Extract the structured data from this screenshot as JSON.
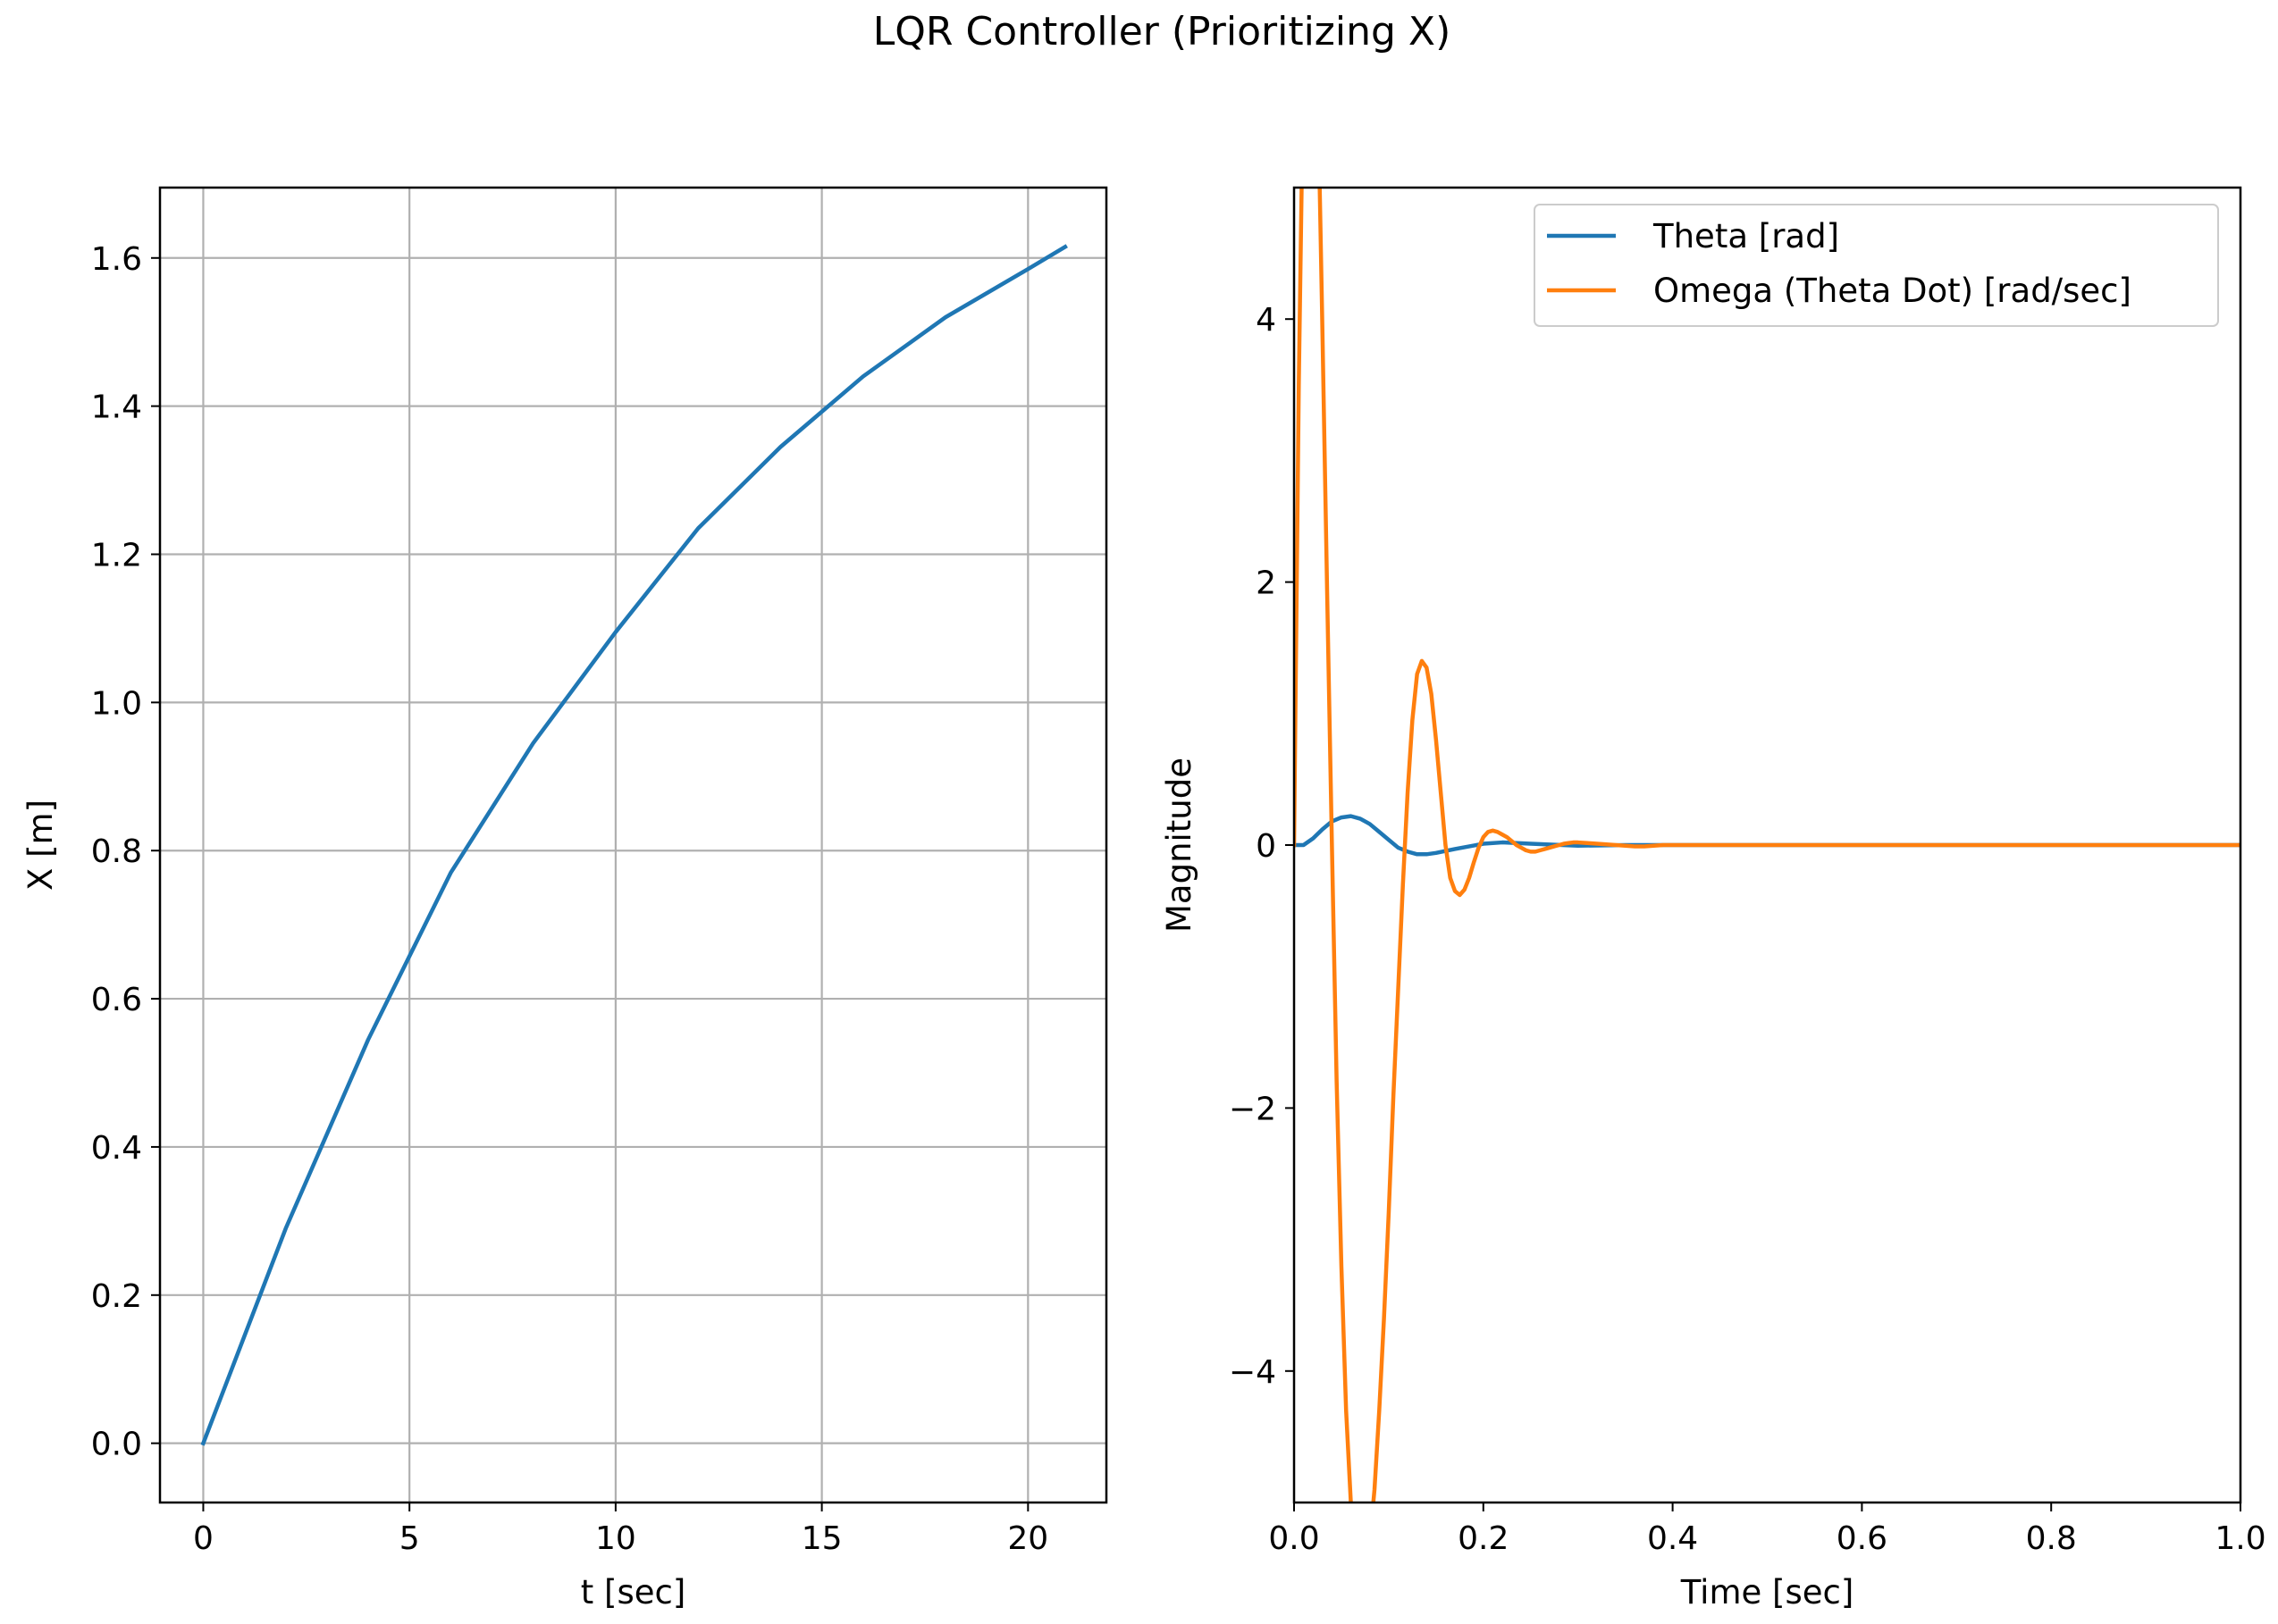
{
  "figure": {
    "suptitle": "LQR Controller (Prioritizing X)"
  },
  "chart_data": [
    {
      "type": "line",
      "title": "",
      "xlabel": "t [sec]",
      "ylabel": "X [m]",
      "xlim": [
        -1.05,
        21.9
      ],
      "ylim": [
        -0.08,
        1.695
      ],
      "grid": true,
      "legend": null,
      "xticks": [
        0,
        5,
        10,
        15,
        20
      ],
      "xtick_labels": [
        "0",
        "5",
        "10",
        "15",
        "20"
      ],
      "yticks": [
        0.0,
        0.2,
        0.4,
        0.6,
        0.8,
        1.0,
        1.2,
        1.4,
        1.6
      ],
      "ytick_labels": [
        "0.0",
        "0.2",
        "0.4",
        "0.6",
        "0.8",
        "1.0",
        "1.2",
        "1.4",
        "1.6"
      ],
      "series": [
        {
          "color": "#1f77b4",
          "x": [
            0,
            2,
            4,
            6,
            8,
            10,
            12,
            14,
            16,
            18,
            20,
            20.9
          ],
          "y": [
            0.0,
            0.29,
            0.545,
            0.77,
            0.945,
            1.095,
            1.235,
            1.345,
            1.44,
            1.52,
            1.585,
            1.615
          ]
        }
      ]
    },
    {
      "type": "line",
      "title": "",
      "xlabel": "Time [sec]",
      "ylabel": "Magnitude",
      "xlim": [
        0.0,
        1.0
      ],
      "ylim": [
        -5,
        5
      ],
      "grid": false,
      "legend": "top-right",
      "xticks": [
        0.0,
        0.2,
        0.4,
        0.6,
        0.8,
        1.0
      ],
      "xtick_labels": [
        "0.0",
        "0.2",
        "0.4",
        "0.6",
        "0.8",
        "1.0"
      ],
      "yticks": [
        -4,
        -2,
        0,
        2,
        4
      ],
      "ytick_labels": [
        "−4",
        "−2",
        "0",
        "2",
        "4"
      ],
      "series": [
        {
          "name": "Theta  [rad]",
          "color": "#1f77b4",
          "x": [
            0,
            0.01,
            0.02,
            0.03,
            0.04,
            0.05,
            0.06,
            0.07,
            0.08,
            0.09,
            0.1,
            0.11,
            0.12,
            0.13,
            0.14,
            0.15,
            0.17,
            0.2,
            0.22,
            0.25,
            0.3,
            0.35,
            0.4,
            0.5,
            0.6,
            1.0
          ],
          "y": [
            0,
            0.0,
            0.05,
            0.12,
            0.18,
            0.21,
            0.22,
            0.2,
            0.16,
            0.1,
            0.04,
            -0.02,
            -0.05,
            -0.07,
            -0.07,
            -0.06,
            -0.03,
            0.01,
            0.02,
            0.01,
            -0.005,
            0.0,
            0.0,
            0.0,
            0.0,
            0.0
          ]
        },
        {
          "name": "Omega (Theta Dot)  [rad/sec]",
          "color": "#ff7f0e",
          "x": [
            0,
            0.005,
            0.01,
            0.015,
            0.02,
            0.025,
            0.03,
            0.035,
            0.04,
            0.045,
            0.05,
            0.055,
            0.06,
            0.065,
            0.07,
            0.075,
            0.08,
            0.085,
            0.09,
            0.095,
            0.1,
            0.105,
            0.11,
            0.115,
            0.12,
            0.125,
            0.13,
            0.135,
            0.14,
            0.145,
            0.15,
            0.155,
            0.16,
            0.165,
            0.17,
            0.175,
            0.18,
            0.185,
            0.19,
            0.195,
            0.2,
            0.205,
            0.21,
            0.215,
            0.22,
            0.225,
            0.23,
            0.235,
            0.24,
            0.245,
            0.25,
            0.255,
            0.26,
            0.265,
            0.27,
            0.275,
            0.28,
            0.285,
            0.29,
            0.295,
            0.3,
            0.31,
            0.32,
            0.33,
            0.34,
            0.35,
            0.36,
            0.37,
            0.38,
            0.39,
            0.4,
            0.41,
            0.42,
            0.43,
            0.44,
            0.45,
            0.47,
            0.5,
            0.53,
            0.56,
            0.6,
            0.7,
            0.8,
            1.0
          ],
          "y": [
            0,
            3.5,
            6.0,
            7.2,
            7.0,
            5.8,
            3.9,
            1.9,
            0.0,
            -1.8,
            -3.2,
            -4.3,
            -5.0,
            -5.5,
            -5.7,
            -5.6,
            -5.3,
            -4.9,
            -4.3,
            -3.6,
            -2.8,
            -1.9,
            -1.1,
            -0.3,
            0.4,
            0.95,
            1.3,
            1.4,
            1.35,
            1.15,
            0.8,
            0.4,
            0.0,
            -0.25,
            -0.35,
            -0.38,
            -0.34,
            -0.25,
            -0.13,
            -0.02,
            0.06,
            0.1,
            0.11,
            0.1,
            0.08,
            0.06,
            0.03,
            0.0,
            -0.02,
            -0.04,
            -0.05,
            -0.05,
            -0.04,
            -0.03,
            -0.02,
            -0.01,
            0.0,
            0.01,
            0.015,
            0.02,
            0.02,
            0.015,
            0.01,
            0.005,
            0.0,
            -0.005,
            -0.01,
            -0.01,
            -0.005,
            0.0,
            0.0,
            0.0,
            0.0,
            0.0,
            0.0,
            0.0,
            0.0,
            0.0,
            0.0,
            0.0,
            0.0,
            0.0,
            0.0,
            0.0
          ]
        }
      ]
    }
  ]
}
